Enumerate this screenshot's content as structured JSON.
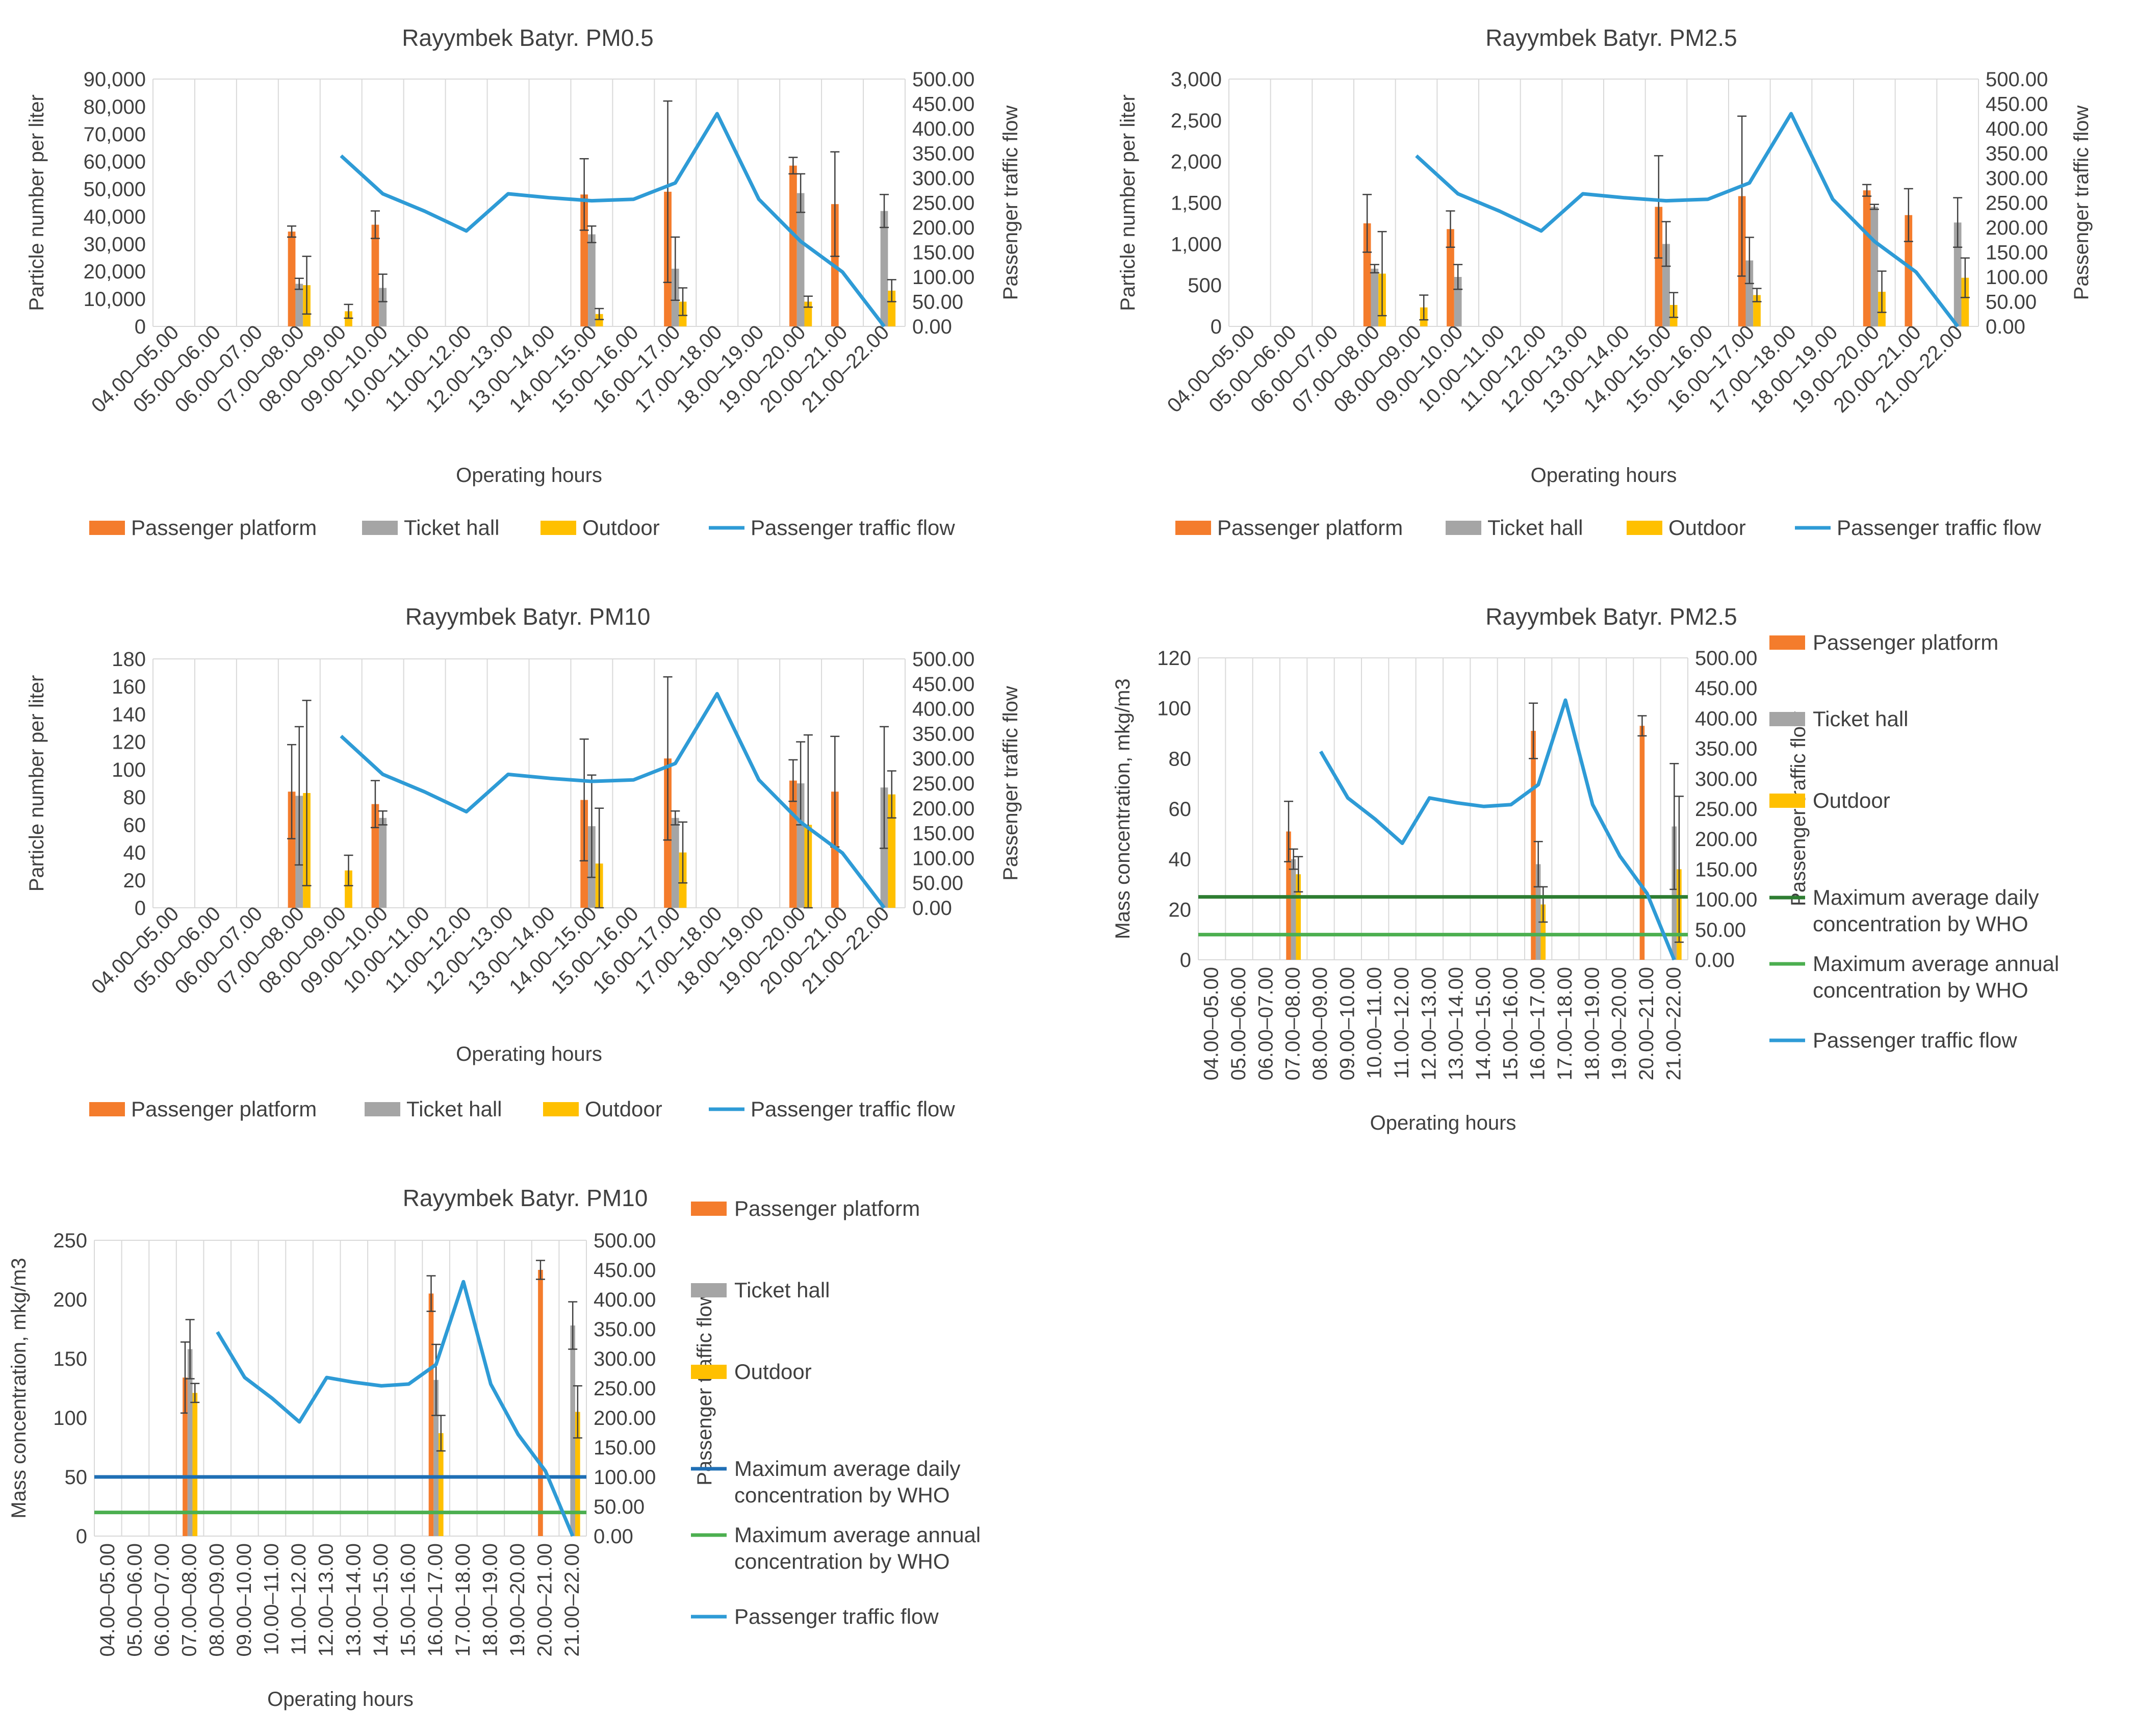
{
  "colors": {
    "platform": "#F47C2C",
    "ticket": "#A5A5A5",
    "outdoor": "#FFC000",
    "flow": "#2E9BD6",
    "who_daily_pm25": "#2E7D32",
    "who_annual": "#4CAF50",
    "who_daily_pm10": "#1F6FB5",
    "grid": "#D9D9D9",
    "text": "#404040",
    "errorbar": "#404040"
  },
  "chart_data": [
    {
      "id": "pm05",
      "type": "bar",
      "title": "Rayymbek Batyr. PM0.5",
      "xlabel": "Operating hours",
      "ylabel": "Particle number per liter",
      "y2label": "Passenger traffic flow",
      "ylim": [
        0,
        90000
      ],
      "ystep": 10000,
      "yformat": "comma",
      "y2lim": [
        0,
        500
      ],
      "y2step": 50,
      "y2format": "fixed2",
      "categories": [
        "04.00–05.00",
        "05.00–06.00",
        "06.00–07.00",
        "07.00–08.00",
        "08.00–09.00",
        "09.00–10.00",
        "10.00–11.00",
        "11.00–12.00",
        "12.00–13.00",
        "13.00–14.00",
        "14.00–15.00",
        "15.00–16.00",
        "16.00–17.00",
        "17.00–18.00",
        "18.00–19.00",
        "19.00–20.00",
        "20.00–21.00",
        "21.00–22.00"
      ],
      "series": [
        {
          "name": "Passenger platform",
          "key": "platform",
          "values": [
            null,
            null,
            null,
            34500,
            null,
            37000,
            null,
            null,
            null,
            null,
            48000,
            null,
            49000,
            null,
            null,
            58500,
            44500,
            null
          ],
          "errors": [
            null,
            null,
            null,
            2000,
            null,
            5000,
            null,
            null,
            null,
            null,
            13000,
            null,
            33000,
            null,
            null,
            3000,
            19000,
            null
          ]
        },
        {
          "name": "Ticket hall",
          "key": "ticket",
          "values": [
            null,
            null,
            null,
            15500,
            null,
            14000,
            null,
            null,
            null,
            null,
            33500,
            null,
            21000,
            null,
            null,
            48500,
            null,
            42000
          ],
          "errors": [
            null,
            null,
            null,
            2000,
            null,
            5000,
            null,
            null,
            null,
            null,
            3000,
            null,
            11500,
            null,
            null,
            7000,
            null,
            6000
          ]
        },
        {
          "name": "Outdoor",
          "key": "outdoor",
          "values": [
            null,
            null,
            null,
            15000,
            5500,
            null,
            null,
            null,
            null,
            null,
            4500,
            null,
            9000,
            null,
            null,
            9000,
            null,
            13000
          ],
          "errors": [
            null,
            null,
            null,
            10500,
            2500,
            null,
            null,
            null,
            null,
            null,
            2000,
            null,
            5000,
            null,
            null,
            2000,
            null,
            4000
          ]
        }
      ],
      "flow": {
        "name": "Passenger traffic flow",
        "values": [
          null,
          null,
          null,
          null,
          345,
          268,
          233,
          193,
          268,
          260,
          254,
          257,
          290,
          430,
          257,
          172,
          110,
          0
        ]
      },
      "legend": "bottom"
    },
    {
      "id": "pm25n",
      "type": "bar",
      "title": "Rayymbek Batyr. PM2.5",
      "xlabel": "Operating hours",
      "ylabel": "Particle number per liter",
      "y2label": "Passenger traffic flow",
      "ylim": [
        0,
        3000
      ],
      "ystep": 500,
      "yformat": "comma",
      "y2lim": [
        0,
        500
      ],
      "y2step": 50,
      "y2format": "fixed2",
      "categories": [
        "04.00–05.00",
        "05.00–06.00",
        "06.00–07.00",
        "07.00–08.00",
        "08.00–09.00",
        "09.00–10.00",
        "10.00–11.00",
        "11.00–12.00",
        "12.00–13.00",
        "13.00–14.00",
        "14.00–15.00",
        "15.00–16.00",
        "16.00–17.00",
        "17.00–18.00",
        "18.00–19.00",
        "19.00–20.00",
        "20.00–21.00",
        "21.00–22.00"
      ],
      "series": [
        {
          "name": "Passenger platform",
          "key": "platform",
          "values": [
            null,
            null,
            null,
            1250,
            null,
            1180,
            null,
            null,
            null,
            null,
            1450,
            null,
            1580,
            null,
            null,
            1650,
            1350,
            null
          ],
          "errors": [
            null,
            null,
            null,
            350,
            null,
            220,
            null,
            null,
            null,
            null,
            620,
            null,
            970,
            null,
            null,
            70,
            320,
            null
          ]
        },
        {
          "name": "Ticket hall",
          "key": "ticket",
          "values": [
            null,
            null,
            null,
            700,
            null,
            600,
            null,
            null,
            null,
            null,
            1000,
            null,
            800,
            null,
            null,
            1450,
            null,
            1260
          ],
          "errors": [
            null,
            null,
            null,
            50,
            null,
            150,
            null,
            null,
            null,
            null,
            270,
            null,
            280,
            null,
            null,
            30,
            null,
            300
          ]
        },
        {
          "name": "Outdoor",
          "key": "outdoor",
          "values": [
            null,
            null,
            null,
            640,
            230,
            null,
            null,
            null,
            null,
            null,
            260,
            null,
            380,
            null,
            null,
            420,
            null,
            590
          ],
          "errors": [
            null,
            null,
            null,
            510,
            150,
            null,
            null,
            null,
            null,
            null,
            150,
            null,
            80,
            null,
            null,
            250,
            null,
            240
          ]
        }
      ],
      "flow": {
        "name": "Passenger traffic flow",
        "values": [
          null,
          null,
          null,
          null,
          345,
          268,
          233,
          193,
          268,
          260,
          254,
          257,
          290,
          430,
          257,
          172,
          110,
          0
        ]
      },
      "legend": "bottom"
    },
    {
      "id": "pm10n",
      "type": "bar",
      "title": "Rayymbek Batyr. PM10",
      "xlabel": "Operating hours",
      "ylabel": "Particle number per liter",
      "y2label": "Passenger traffic flow",
      "ylim": [
        0,
        180
      ],
      "ystep": 20,
      "yformat": "int",
      "y2lim": [
        0,
        500
      ],
      "y2step": 50,
      "y2format": "fixed2",
      "categories": [
        "04.00–05.00",
        "05.00–06.00",
        "06.00–07.00",
        "07.00–08.00",
        "08.00–09.00",
        "09.00–10.00",
        "10.00–11.00",
        "11.00–12.00",
        "12.00–13.00",
        "13.00–14.00",
        "14.00–15.00",
        "15.00–16.00",
        "16.00–17.00",
        "17.00–18.00",
        "18.00–19.00",
        "19.00–20.00",
        "20.00–21.00",
        "21.00–22.00"
      ],
      "series": [
        {
          "name": "Passenger platform",
          "key": "platform",
          "values": [
            null,
            null,
            null,
            84,
            null,
            75,
            null,
            null,
            null,
            null,
            78,
            null,
            108,
            null,
            null,
            92,
            84,
            null
          ],
          "errors": [
            null,
            null,
            null,
            34,
            null,
            17,
            null,
            null,
            null,
            null,
            44,
            null,
            59,
            null,
            null,
            15,
            40,
            null
          ]
        },
        {
          "name": "Ticket hall",
          "key": "ticket",
          "values": [
            null,
            null,
            null,
            81,
            null,
            65,
            null,
            null,
            null,
            null,
            59,
            null,
            65,
            null,
            null,
            90,
            null,
            87
          ],
          "errors": [
            null,
            null,
            null,
            50,
            null,
            5,
            null,
            null,
            null,
            null,
            37,
            null,
            5,
            null,
            null,
            30,
            null,
            44
          ]
        },
        {
          "name": "Outdoor",
          "key": "outdoor",
          "values": [
            null,
            null,
            null,
            83,
            27,
            null,
            null,
            null,
            null,
            null,
            32,
            null,
            40,
            null,
            null,
            60,
            null,
            82
          ],
          "errors": [
            null,
            null,
            null,
            67,
            11,
            null,
            null,
            null,
            null,
            null,
            40,
            null,
            22,
            null,
            null,
            65,
            null,
            17
          ]
        }
      ],
      "flow": {
        "name": "Passenger traffic flow",
        "values": [
          null,
          null,
          null,
          null,
          345,
          268,
          233,
          193,
          268,
          260,
          254,
          257,
          290,
          430,
          257,
          172,
          110,
          0
        ]
      },
      "legend": "bottom"
    },
    {
      "id": "pm25m",
      "type": "bar",
      "title": "Rayymbek Batyr. PM2.5",
      "xlabel": "Operating hours",
      "ylabel": "Mass concentration, mkg/m3",
      "y2label": "Passenger traffic flow",
      "ylim": [
        0,
        120
      ],
      "ystep": 20,
      "yformat": "int",
      "y2lim": [
        0,
        500
      ],
      "y2step": 50,
      "y2format": "fixed2",
      "categories": [
        "04.00–05.00",
        "05.00–06.00",
        "06.00–07.00",
        "07.00–08.00",
        "08.00–09.00",
        "09.00–10.00",
        "10.00–11.00",
        "11.00–12.00",
        "12.00–13.00",
        "13.00–14.00",
        "14.00–15.00",
        "15.00–16.00",
        "16.00–17.00",
        "17.00–18.00",
        "18.00–19.00",
        "19.00–20.00",
        "20.00–21.00",
        "21.00–22.00"
      ],
      "series": [
        {
          "name": "Passenger platform",
          "key": "platform",
          "values": [
            null,
            null,
            null,
            51,
            null,
            null,
            null,
            null,
            null,
            null,
            null,
            null,
            91,
            null,
            null,
            null,
            93,
            null
          ],
          "errors": [
            null,
            null,
            null,
            12,
            null,
            null,
            null,
            null,
            null,
            null,
            null,
            null,
            11,
            null,
            null,
            null,
            4,
            null
          ]
        },
        {
          "name": "Ticket hall",
          "key": "ticket",
          "values": [
            null,
            null,
            null,
            40,
            null,
            null,
            null,
            null,
            null,
            null,
            null,
            null,
            38,
            null,
            null,
            null,
            null,
            53
          ],
          "errors": [
            null,
            null,
            null,
            4,
            null,
            null,
            null,
            null,
            null,
            null,
            null,
            null,
            9,
            null,
            null,
            null,
            null,
            25
          ]
        },
        {
          "name": "Outdoor",
          "key": "outdoor",
          "values": [
            null,
            null,
            null,
            34,
            null,
            null,
            null,
            null,
            null,
            null,
            null,
            null,
            22,
            null,
            null,
            null,
            null,
            36
          ],
          "errors": [
            null,
            null,
            null,
            7,
            null,
            null,
            null,
            null,
            null,
            null,
            null,
            null,
            7,
            null,
            null,
            null,
            null,
            29
          ]
        }
      ],
      "hlines": [
        {
          "name": "Maximum average daily concentration by WHO",
          "key": "who_daily_pm25",
          "value": 25
        },
        {
          "name": "Maximum average annual concentration by WHO",
          "key": "who_annual",
          "value": 10
        }
      ],
      "flow": {
        "name": "Passenger traffic flow",
        "values": [
          null,
          null,
          null,
          null,
          345,
          268,
          233,
          193,
          268,
          260,
          254,
          257,
          290,
          430,
          257,
          172,
          110,
          0
        ]
      },
      "legend": "right"
    },
    {
      "id": "pm10m",
      "type": "bar",
      "title": "Rayymbek Batyr. PM10",
      "xlabel": "Operating hours",
      "ylabel": "Mass concentration, mkg/m3",
      "y2label": "Passenger traffic flow",
      "ylim": [
        0,
        250
      ],
      "ystep": 50,
      "yformat": "int",
      "y2lim": [
        0,
        500
      ],
      "y2step": 50,
      "y2format": "fixed2",
      "categories": [
        "04.00–05.00",
        "05.00–06.00",
        "06.00–07.00",
        "07.00–08.00",
        "08.00–09.00",
        "09.00–10.00",
        "10.00–11.00",
        "11.00–12.00",
        "12.00–13.00",
        "13.00–14.00",
        "14.00–15.00",
        "15.00–16.00",
        "16.00–17.00",
        "17.00–18.00",
        "18.00–19.00",
        "19.00–20.00",
        "20.00–21.00",
        "21.00–22.00"
      ],
      "series": [
        {
          "name": "Passenger platform",
          "key": "platform",
          "values": [
            null,
            null,
            null,
            134,
            null,
            null,
            null,
            null,
            null,
            null,
            null,
            null,
            205,
            null,
            null,
            null,
            225,
            null
          ],
          "errors": [
            null,
            null,
            null,
            30,
            null,
            null,
            null,
            null,
            null,
            null,
            null,
            null,
            15,
            null,
            null,
            null,
            8,
            null
          ]
        },
        {
          "name": "Ticket hall",
          "key": "ticket",
          "values": [
            null,
            null,
            null,
            158,
            null,
            null,
            null,
            null,
            null,
            null,
            null,
            null,
            132,
            null,
            null,
            null,
            null,
            178
          ],
          "errors": [
            null,
            null,
            null,
            25,
            null,
            null,
            null,
            null,
            null,
            null,
            null,
            null,
            30,
            null,
            null,
            null,
            null,
            20
          ]
        },
        {
          "name": "Outdoor",
          "key": "outdoor",
          "values": [
            null,
            null,
            null,
            121,
            null,
            null,
            null,
            null,
            null,
            null,
            null,
            null,
            87,
            null,
            null,
            null,
            null,
            105
          ],
          "errors": [
            null,
            null,
            null,
            8,
            null,
            null,
            null,
            null,
            null,
            null,
            null,
            null,
            15,
            null,
            null,
            null,
            null,
            22
          ]
        }
      ],
      "hlines": [
        {
          "name": "Maximum average daily concentration by WHO",
          "key": "who_daily_pm10",
          "value": 50
        },
        {
          "name": "Maximum average annual concentration by WHO",
          "key": "who_annual",
          "value": 20
        }
      ],
      "flow": {
        "name": "Passenger traffic flow",
        "values": [
          null,
          null,
          null,
          null,
          345,
          268,
          233,
          193,
          268,
          260,
          254,
          257,
          290,
          430,
          257,
          172,
          110,
          0
        ]
      },
      "legend": "right"
    }
  ]
}
